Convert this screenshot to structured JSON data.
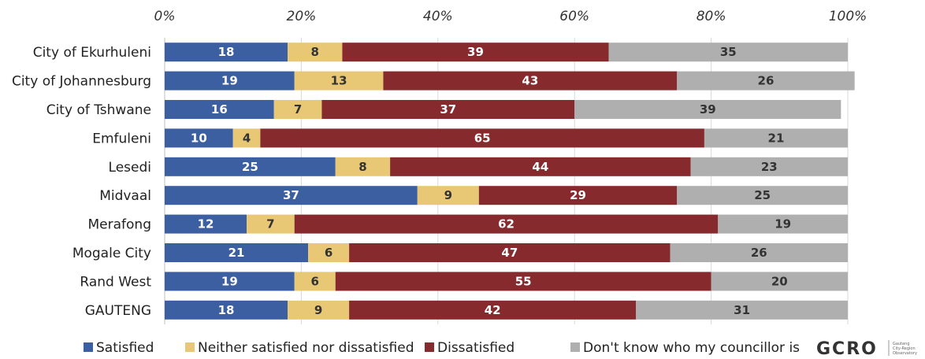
{
  "chart_data": {
    "type": "bar",
    "orientation": "horizontal",
    "stacked": true,
    "categories": [
      "City of Ekurhuleni",
      "City of Johannesburg",
      "City of Tshwane",
      "Emfuleni",
      "Lesedi",
      "Midvaal",
      "Merafong",
      "Mogale City",
      "Rand West",
      "GAUTENG"
    ],
    "series": [
      {
        "name": "Satisfied",
        "color": "#3B5FA0",
        "label_color": "#ffffff",
        "values": [
          18,
          19,
          16,
          10,
          25,
          37,
          12,
          21,
          19,
          18
        ]
      },
      {
        "name": "Neither satisfied nor dissatisfied",
        "color": "#E8C875",
        "label_color": "#333333",
        "values": [
          8,
          13,
          7,
          4,
          8,
          9,
          7,
          6,
          6,
          9
        ]
      },
      {
        "name": "Dissatisfied",
        "color": "#862A2E",
        "label_color": "#ffffff",
        "values": [
          39,
          43,
          37,
          65,
          44,
          29,
          62,
          47,
          55,
          42
        ]
      },
      {
        "name": "Don't know who my councillor is",
        "color": "#AFAFAF",
        "label_color": "#333333",
        "values": [
          35,
          26,
          39,
          21,
          23,
          25,
          19,
          26,
          20,
          31
        ]
      }
    ],
    "xlim": [
      0,
      100
    ],
    "x_ticks": [
      "0%",
      "20%",
      "40%",
      "60%",
      "80%",
      "100%"
    ],
    "x_axis_position": "top",
    "grid": true,
    "legend": "bottom"
  },
  "logo": {
    "text": "GCRO",
    "subtitle": [
      "Gauteng",
      "City-Region",
      "Observatory"
    ]
  }
}
